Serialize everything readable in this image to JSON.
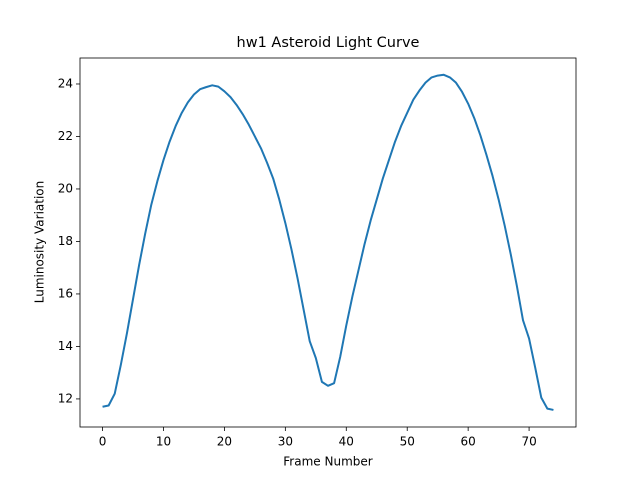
{
  "chart_data": {
    "type": "line",
    "title": "hw1 Asteroid Light Curve",
    "x_label": "Frame Number",
    "y_label": "Luminosity Variation",
    "x": [
      0,
      1,
      2,
      3,
      4,
      5,
      6,
      7,
      8,
      9,
      10,
      11,
      12,
      13,
      14,
      15,
      16,
      17,
      18,
      19,
      20,
      21,
      22,
      23,
      24,
      25,
      26,
      27,
      28,
      29,
      30,
      31,
      32,
      33,
      34,
      35,
      36,
      37,
      38,
      39,
      40,
      41,
      42,
      43,
      44,
      45,
      46,
      47,
      48,
      49,
      50,
      51,
      52,
      53,
      54,
      55,
      56,
      57,
      58,
      59,
      60,
      61,
      62,
      63,
      64,
      65,
      66,
      67,
      68,
      69,
      70,
      71,
      72,
      73,
      74
    ],
    "values": [
      11.7,
      11.75,
      12.2,
      13.3,
      14.5,
      15.8,
      17.1,
      18.3,
      19.4,
      20.3,
      21.1,
      21.8,
      22.4,
      22.9,
      23.3,
      23.6,
      23.8,
      23.88,
      23.95,
      23.9,
      23.72,
      23.5,
      23.2,
      22.85,
      22.45,
      22.0,
      21.55,
      21.0,
      20.4,
      19.6,
      18.7,
      17.7,
      16.6,
      15.4,
      14.2,
      13.56,
      12.65,
      12.5,
      12.6,
      13.6,
      14.8,
      15.9,
      16.9,
      17.9,
      18.8,
      19.6,
      20.4,
      21.1,
      21.8,
      22.4,
      22.9,
      23.4,
      23.75,
      24.05,
      24.25,
      24.32,
      24.35,
      24.25,
      24.05,
      23.7,
      23.25,
      22.7,
      22.05,
      21.3,
      20.5,
      19.6,
      18.6,
      17.5,
      16.3,
      15.0,
      14.3,
      13.2,
      12.05,
      11.63,
      11.58
    ],
    "color": "#1f77b4",
    "xlim": [
      -3.7,
      77.7
    ],
    "ylim": [
      10.93,
      24.99
    ],
    "xticks": [
      0,
      10,
      20,
      30,
      40,
      50,
      60,
      70
    ],
    "yticks": [
      12,
      14,
      16,
      18,
      20,
      22,
      24
    ],
    "grid": false
  }
}
